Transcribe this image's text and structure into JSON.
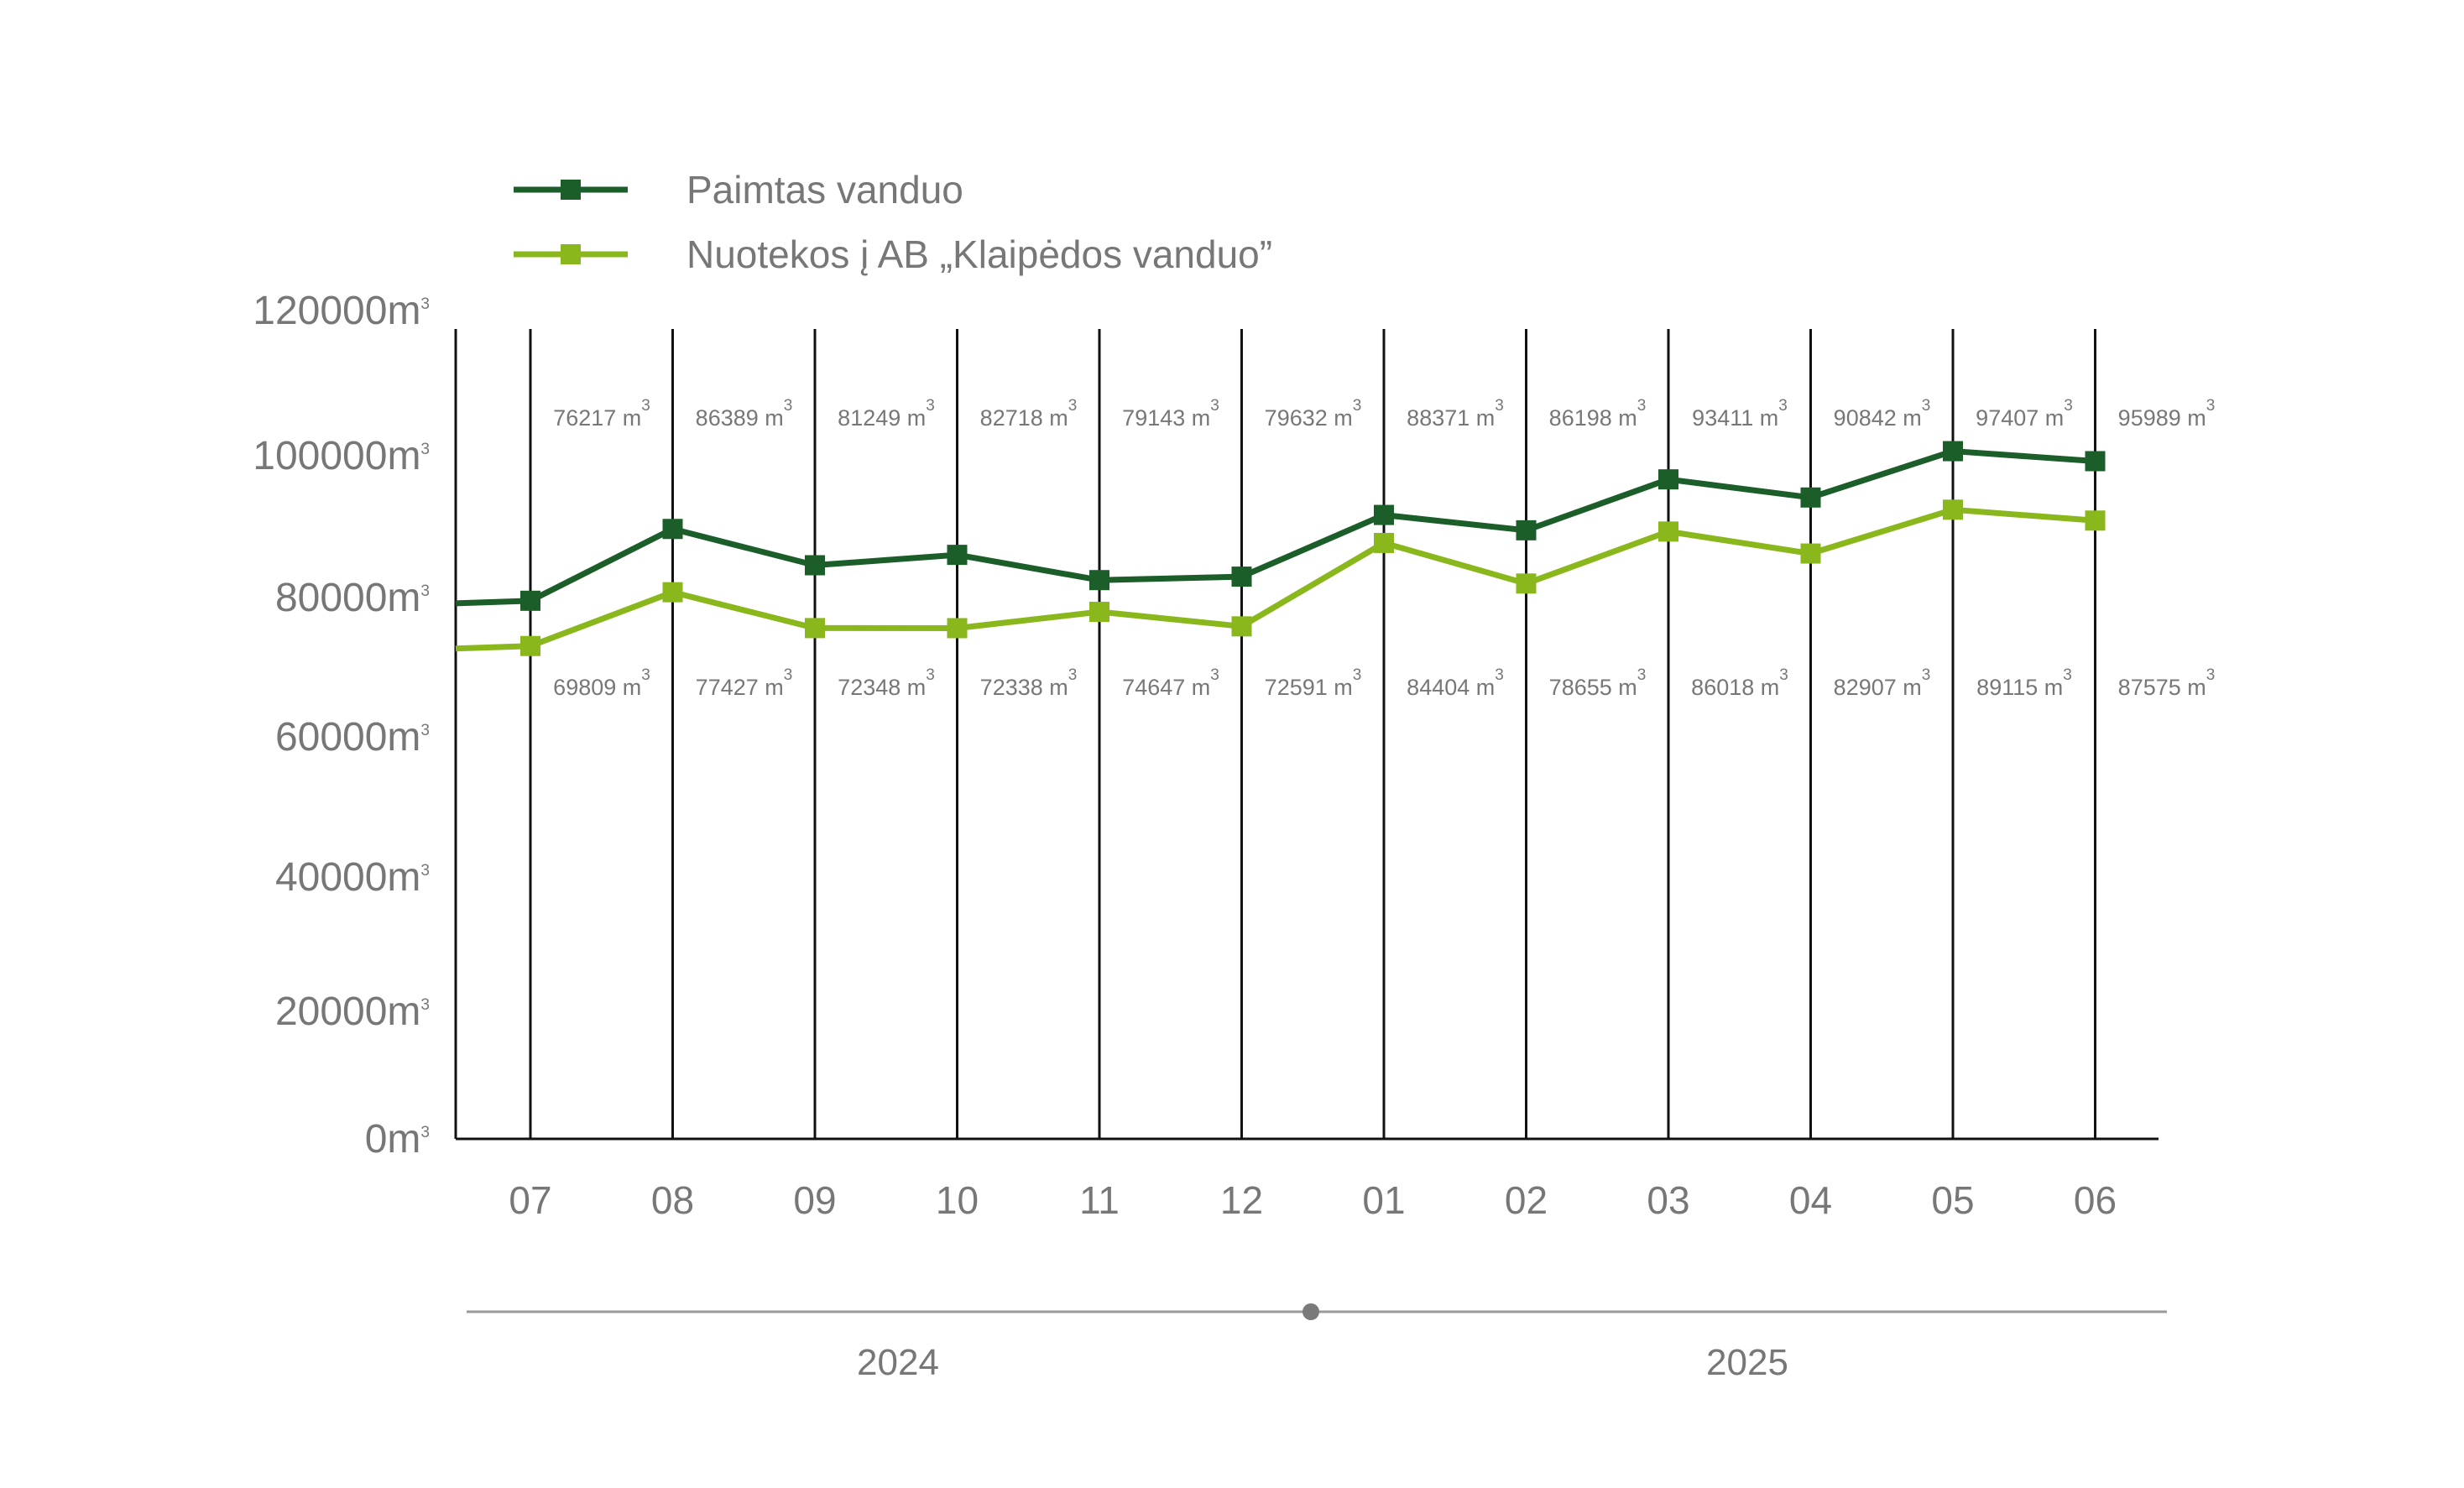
{
  "chart_data": {
    "type": "line",
    "categories": [
      "07",
      "08",
      "09",
      "10",
      "11",
      "12",
      "01",
      "02",
      "03",
      "04",
      "05",
      "06"
    ],
    "series": [
      {
        "name": "Paimtas vanduo",
        "color": "#1b5e2a",
        "values": [
          76217,
          86389,
          81249,
          82718,
          79143,
          79632,
          88371,
          86198,
          93411,
          90842,
          97407,
          95989
        ],
        "labels": [
          "76217 m",
          "86389 m",
          "81249 m",
          "82718 m",
          "79143 m",
          "79632 m",
          "88371 m",
          "86198 m",
          "93411 m",
          "90842 m",
          "97407 m",
          "95989 m"
        ]
      },
      {
        "name": "Nuotekos į AB „Klaipėdos vanduo”",
        "color": "#8ab81c",
        "values": [
          69809,
          77427,
          72348,
          72338,
          74647,
          72591,
          84404,
          78655,
          86018,
          82907,
          89115,
          87575
        ],
        "labels": [
          "69809 m",
          "77427 m",
          "72348 m",
          "72338 m",
          "74647 m",
          "72591 m",
          "84404 m",
          "78655 m",
          "86018 m",
          "82907 m",
          "89115 m",
          "87575 m"
        ]
      }
    ],
    "label_superscript": "3",
    "y_ticks": [
      {
        "value": 0,
        "label": "0m"
      },
      {
        "value": 20000,
        "label": "20000m"
      },
      {
        "value": 40000,
        "label": "40000m"
      },
      {
        "value": 60000,
        "label": "60000m"
      },
      {
        "value": 80000,
        "label": "80000m"
      },
      {
        "value": 100000,
        "label": "100000m"
      },
      {
        "value": 120000,
        "label": "120000m"
      }
    ],
    "y_tick_superscript": "3",
    "ylim": [
      0,
      115000
    ],
    "years": [
      "2024",
      "2025"
    ],
    "grid": "vertical lines at each month",
    "legend_position": "top-left"
  }
}
